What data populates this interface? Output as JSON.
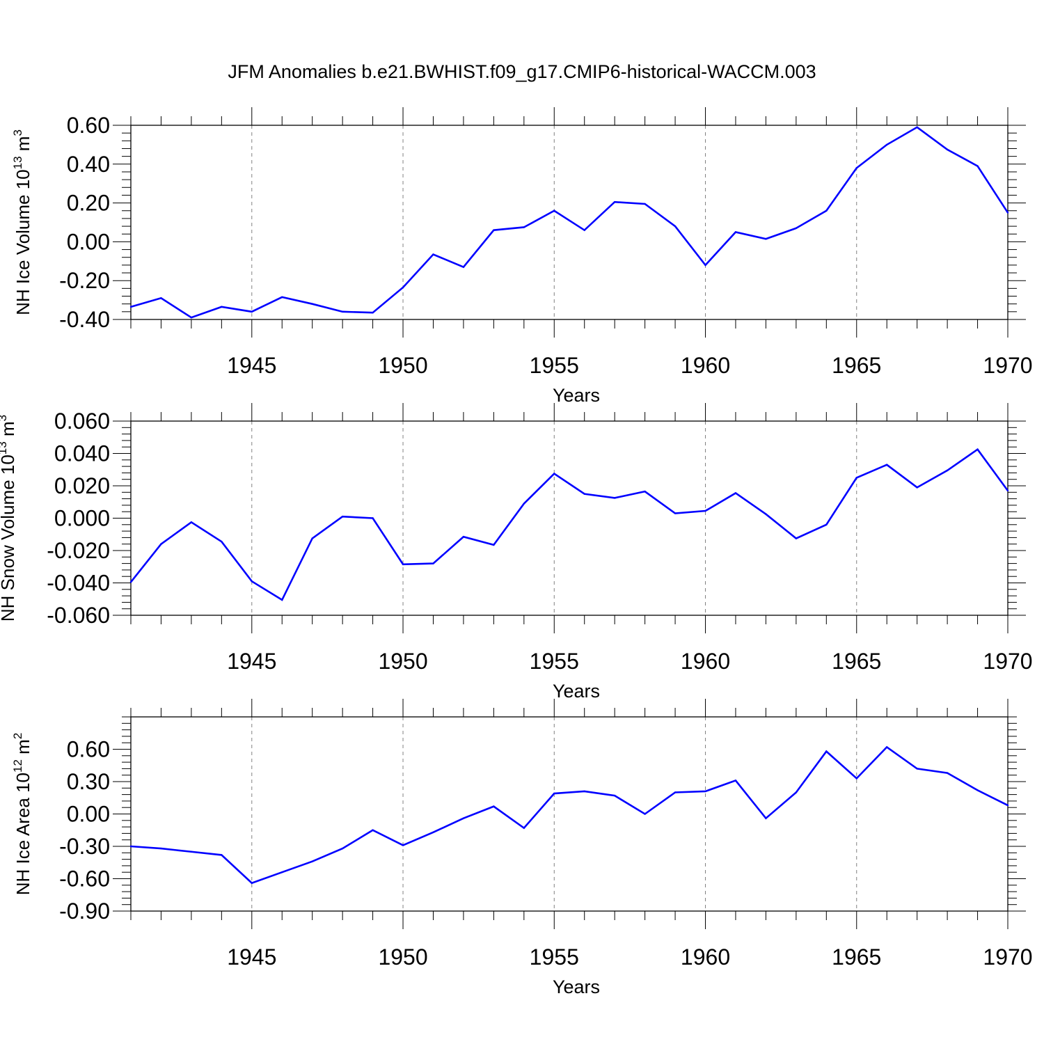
{
  "title": "JFM Anomalies b.e21.BWHIST.f09_g17.CMIP6-historical-WACCM.003",
  "colors": {
    "line": "#0000ff",
    "axis": "#000000",
    "grid": "#808080"
  },
  "chart_data": [
    {
      "type": "line",
      "title": "",
      "xlabel": "Years",
      "ylabel": "NH Ice Volume 10",
      "ylabel_exp": "13",
      "ylabel_unit": " m",
      "ylabel_unit_exp": "3",
      "xlim": [
        1941,
        1970
      ],
      "ylim": [
        -0.4,
        0.6
      ],
      "xticks": [
        1945,
        1950,
        1955,
        1960,
        1965,
        1970
      ],
      "xtick_labels": [
        "1945",
        "1950",
        "1955",
        "1960",
        "1965",
        "1970"
      ],
      "yticks": [
        -0.4,
        -0.2,
        0.0,
        0.2,
        0.4,
        0.6
      ],
      "ytick_labels": [
        "-0.40",
        "-0.20",
        "0.00",
        "0.20",
        "0.40",
        "0.60"
      ],
      "grid": "x dashed",
      "x": [
        1941,
        1942,
        1943,
        1944,
        1945,
        1946,
        1947,
        1948,
        1949,
        1950,
        1951,
        1952,
        1953,
        1954,
        1955,
        1956,
        1957,
        1958,
        1959,
        1960,
        1961,
        1962,
        1963,
        1964,
        1965,
        1966,
        1967,
        1968,
        1969,
        1970
      ],
      "series": [
        {
          "values": [
            -0.335,
            -0.29,
            -0.39,
            -0.335,
            -0.36,
            -0.285,
            -0.32,
            -0.36,
            -0.365,
            -0.235,
            -0.065,
            -0.13,
            0.06,
            0.075,
            0.16,
            0.06,
            0.205,
            0.195,
            0.08,
            -0.12,
            0.05,
            0.015,
            0.07,
            0.16,
            0.38,
            0.5,
            0.59,
            0.475,
            0.39,
            0.15
          ]
        }
      ]
    },
    {
      "type": "line",
      "title": "",
      "xlabel": "Years",
      "ylabel": "NH Snow Volume 10",
      "ylabel_exp": "13",
      "ylabel_unit": " m",
      "ylabel_unit_exp": "3",
      "xlim": [
        1941,
        1970
      ],
      "ylim": [
        -0.06,
        0.06
      ],
      "xticks": [
        1945,
        1950,
        1955,
        1960,
        1965,
        1970
      ],
      "xtick_labels": [
        "1945",
        "1950",
        "1955",
        "1960",
        "1965",
        "1970"
      ],
      "yticks": [
        -0.06,
        -0.04,
        -0.02,
        0.0,
        0.02,
        0.04,
        0.06
      ],
      "ytick_labels": [
        "-0.060",
        "-0.040",
        "-0.020",
        "0.000",
        "0.020",
        "0.040",
        "0.060"
      ],
      "grid": "x dashed",
      "x": [
        1941,
        1942,
        1943,
        1944,
        1945,
        1946,
        1947,
        1948,
        1949,
        1950,
        1951,
        1952,
        1953,
        1954,
        1955,
        1956,
        1957,
        1958,
        1959,
        1960,
        1961,
        1962,
        1963,
        1964,
        1965,
        1966,
        1967,
        1968,
        1969,
        1970
      ],
      "series": [
        {
          "values": [
            -0.0395,
            -0.016,
            -0.0025,
            -0.0145,
            -0.039,
            -0.0505,
            -0.0125,
            0.001,
            0.0,
            -0.0285,
            -0.028,
            -0.0115,
            -0.0165,
            0.009,
            0.0275,
            0.015,
            0.0125,
            0.0165,
            0.003,
            0.0045,
            0.0155,
            0.0025,
            -0.0125,
            -0.004,
            0.025,
            0.033,
            0.019,
            0.0295,
            0.0425,
            0.017
          ]
        }
      ]
    },
    {
      "type": "line",
      "title": "",
      "xlabel": "Years",
      "ylabel": "NH Ice Area 10",
      "ylabel_exp": "12",
      "ylabel_unit": " m",
      "ylabel_unit_exp": "2",
      "xlim": [
        1941,
        1970
      ],
      "ylim": [
        -0.9,
        0.9
      ],
      "xticks": [
        1945,
        1950,
        1955,
        1960,
        1965,
        1970
      ],
      "xtick_labels": [
        "1945",
        "1950",
        "1955",
        "1960",
        "1965",
        "1970"
      ],
      "yticks": [
        -0.9,
        -0.6,
        -0.3,
        0.0,
        0.3,
        0.6
      ],
      "ytick_labels": [
        "-0.90",
        "-0.60",
        "-0.30",
        "0.00",
        "0.30",
        "0.60"
      ],
      "grid": "x dashed",
      "x": [
        1941,
        1942,
        1943,
        1944,
        1945,
        1946,
        1947,
        1948,
        1949,
        1950,
        1951,
        1952,
        1953,
        1954,
        1955,
        1956,
        1957,
        1958,
        1959,
        1960,
        1961,
        1962,
        1963,
        1964,
        1965,
        1966,
        1967,
        1968,
        1969,
        1970
      ],
      "series": [
        {
          "values": [
            -0.3,
            -0.32,
            -0.35,
            -0.38,
            -0.64,
            -0.54,
            -0.44,
            -0.32,
            -0.15,
            -0.29,
            -0.17,
            -0.04,
            0.07,
            -0.13,
            0.19,
            0.21,
            0.17,
            0.0,
            0.2,
            0.21,
            0.31,
            -0.04,
            0.2,
            0.58,
            0.33,
            0.62,
            0.42,
            0.38,
            0.22,
            0.08
          ]
        }
      ]
    }
  ]
}
